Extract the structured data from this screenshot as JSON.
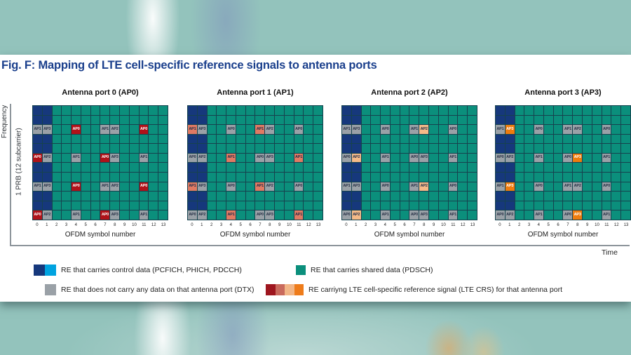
{
  "figure": {
    "title": "Fig. F: Mapping of LTE cell-specific reference signals to antenna ports"
  },
  "axes": {
    "frequency_label": "Frequency",
    "prb_label": "1 PRB (12 subcarrier)",
    "time_label": "Time",
    "x_axis_label": "OFDM symbol number",
    "symbol_numbers": [
      "0",
      "1",
      "2",
      "3",
      "4",
      "5",
      "6",
      "7",
      "8",
      "9",
      "10",
      "11",
      "12",
      "13"
    ]
  },
  "resource_grid": {
    "rows": 12,
    "cols": 14,
    "control_columns": [
      0,
      1
    ],
    "colors": {
      "control": "#16387c",
      "shared": "#0b8f7c",
      "dtx": "#9aa1a7",
      "dtx_text": "#273046",
      "grid_line": "#16424e"
    },
    "labeled_cells": {
      "2": {
        "0": "AP1",
        "1": "AP3",
        "4": "AP0",
        "7": "AP1",
        "8": "AP2",
        "11": "AP0"
      },
      "5": {
        "0": "AP0",
        "1": "AP2",
        "4": "AP1",
        "7": "AP0",
        "8": "AP3",
        "11": "AP1"
      },
      "8": {
        "0": "AP1",
        "1": "AP3",
        "4": "AP0",
        "7": "AP1",
        "8": "AP2",
        "11": "AP0"
      },
      "11": {
        "0": "AP0",
        "1": "AP2",
        "4": "AP1",
        "7": "AP0",
        "8": "AP3",
        "11": "AP1"
      }
    }
  },
  "panels": [
    {
      "title": "Antenna port 0 (AP0)",
      "port": "AP0",
      "crs_color": "#b01219",
      "crs_text": "#ffffff"
    },
    {
      "title": "Antenna port 1 (AP1)",
      "port": "AP1",
      "crs_color": "#e07a63",
      "crs_text": "#1c2b4a"
    },
    {
      "title": "Antenna port 2 (AP2)",
      "port": "AP2",
      "crs_color": "#f5ba88",
      "crs_text": "#1c2b4a"
    },
    {
      "title": "Antenna port 3 (AP3)",
      "port": "AP3",
      "crs_color": "#ee7c0e",
      "crs_text": "#ffffff"
    }
  ],
  "legend": {
    "items": [
      {
        "swatches": [
          "#16387c",
          "#00a3e0"
        ],
        "label": "RE that carries control data (PCFICH, PHICH, PDCCH)"
      },
      {
        "swatches": [
          "#9aa1a7"
        ],
        "label": "RE that does not carry any data on that antenna port (DTX)"
      },
      {
        "swatches": [
          "#0b8f7c"
        ],
        "label": "RE that carries shared data (PDSCH)"
      },
      {
        "swatches": [
          "#9e161f",
          "#c96a5d",
          "#f2b687",
          "#ee7c1b"
        ],
        "label": "RE carriyng LTE cell-specific reference signal (LTE CRS) for that antenna port"
      }
    ]
  }
}
